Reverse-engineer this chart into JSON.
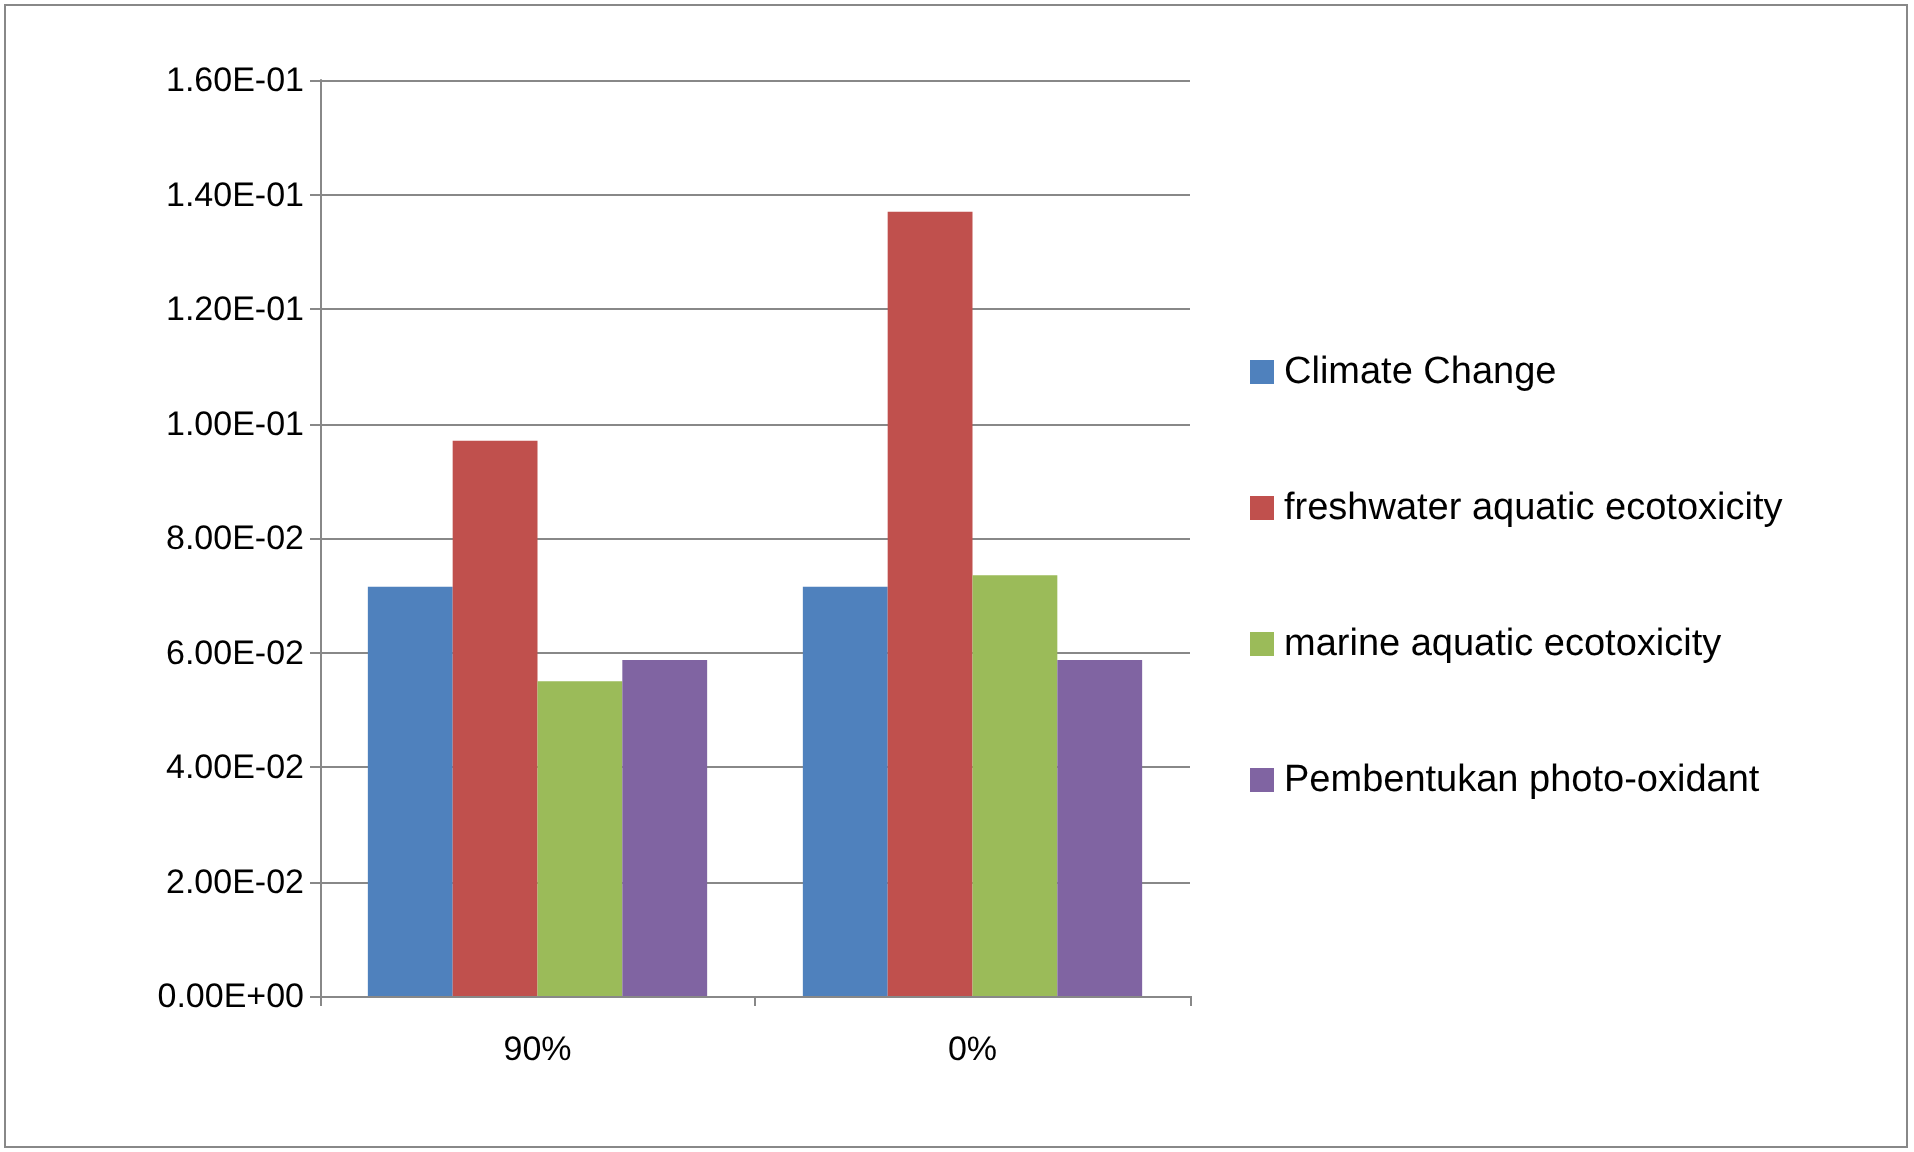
{
  "chart_data": {
    "type": "bar",
    "categories": [
      "90%",
      "0%"
    ],
    "series": [
      {
        "name": "Climate Change",
        "color": "#4f81bd",
        "values": [
          0.0715,
          0.0715
        ]
      },
      {
        "name": "freshwater aquatic ecotoxicity",
        "color": "#c0504d",
        "values": [
          0.097,
          0.137
        ]
      },
      {
        "name": "marine aquatic ecotoxicity",
        "color": "#9bbb59",
        "values": [
          0.055,
          0.0735
        ]
      },
      {
        "name": "Pembentukan photo-oxidant",
        "color": "#8064a2",
        "values": [
          0.0587,
          0.0587
        ]
      }
    ],
    "ylim": [
      0,
      0.16
    ],
    "yticks": [
      {
        "value": 0,
        "label": "0.00E+00"
      },
      {
        "value": 0.02,
        "label": "2.00E-02"
      },
      {
        "value": 0.04,
        "label": "4.00E-02"
      },
      {
        "value": 0.06,
        "label": "6.00E-02"
      },
      {
        "value": 0.08,
        "label": "8.00E-02"
      },
      {
        "value": 0.1,
        "label": "1.00E-01"
      },
      {
        "value": 0.12,
        "label": "1.20E-01"
      },
      {
        "value": 0.14,
        "label": "1.40E-01"
      },
      {
        "value": 0.16,
        "label": "1.60E-01"
      }
    ],
    "grid": "y",
    "legend": "right"
  }
}
